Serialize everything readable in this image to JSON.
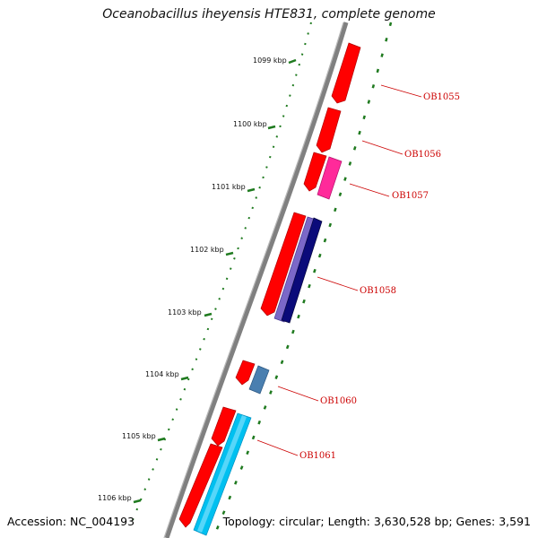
{
  "header": {
    "title": "Oceanobacillus iheyensis HTE831, complete genome"
  },
  "footer": {
    "accession": "Accession: NC_004193",
    "summary": "Topology: circular; Length: 3,630,528 bp; Genes: 3,591"
  },
  "scale": {
    "labels": [
      "1099 kbp",
      "1100 kbp",
      "1101 kbp",
      "1102 kbp",
      "1103 kbp",
      "1104 kbp",
      "1105 kbp",
      "1106 kbp"
    ]
  },
  "genes": {
    "labels": [
      "OB1055",
      "OB1056",
      "OB1057",
      "OB1058",
      "OB1060",
      "OB1061"
    ]
  },
  "colors": {
    "backbone": "#808080",
    "tick": "#1f7a1f",
    "cds_forward": "#ff0000",
    "cds_magenta": "#ff2a9a",
    "cds_purple": "#7b68c8",
    "cds_navy": "#0b0b7a",
    "cds_steel": "#4a7fb0",
    "cds_cyan": "#00c0f0",
    "label_red": "#cc0000"
  }
}
